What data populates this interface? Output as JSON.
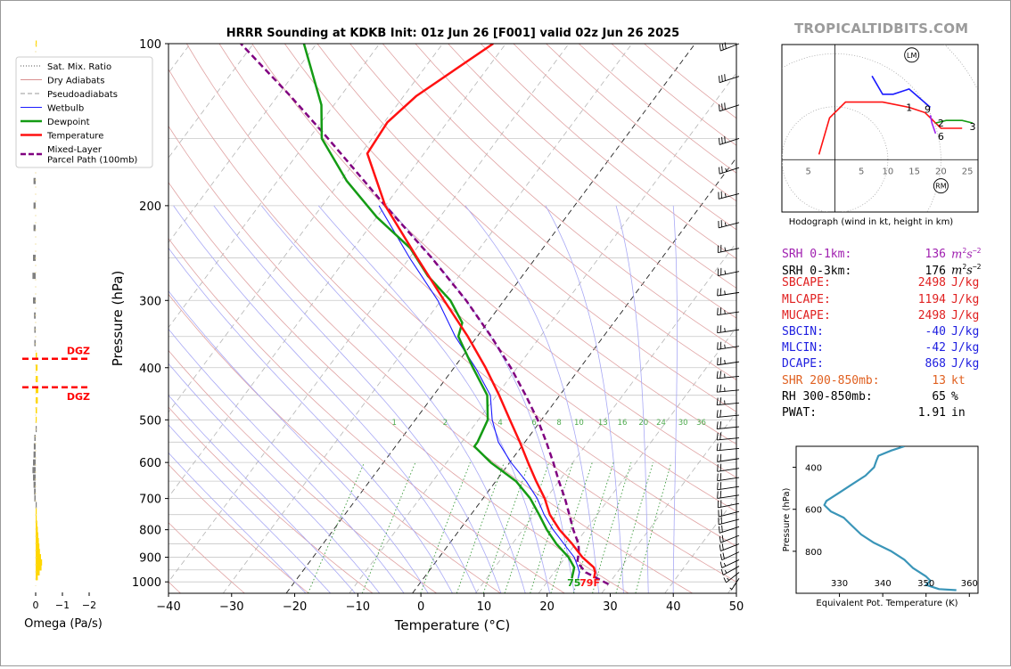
{
  "header": {
    "title": "HRRR Sounding at KDKB Init: 01z Jun 26 [F001] valid 02z Jun 26 2025",
    "brand": "TROPICALTIDBITS.COM"
  },
  "legend": [
    {
      "label": "Sat. Mix. Ratio",
      "color": "#555555",
      "style": "dotted"
    },
    {
      "label": "Dry Adiabats",
      "color": "#d98f8f",
      "style": "solid"
    },
    {
      "label": "Pseudoadiabats",
      "color": "#999999",
      "style": "dashed"
    },
    {
      "label": "Wetbulb",
      "color": "#1a1aff",
      "style": "solid"
    },
    {
      "label": "Dewpoint",
      "color": "#149b14",
      "style": "solid"
    },
    {
      "label": "Temperature",
      "color": "#ff1111",
      "style": "solid"
    },
    {
      "label": "Mixed-Layer\nParcel Path (100mb)",
      "color": "#800080",
      "style": "dashed"
    }
  ],
  "colors": {
    "temperature": "#ff1111",
    "dewpoint": "#149b14",
    "wetbulb": "#1a1aff",
    "parcel": "#800080",
    "dry_adiabat": "#e0a3a3",
    "moist_adiabat": "#b0b0ff",
    "mixing_ratio": "#2e8b2e",
    "dgz": "#ff0000",
    "omega_up": "#ffd700",
    "omega_down": "#808080",
    "theta_e": "#3a95b8"
  },
  "chart_data": [
    {
      "type": "line",
      "name": "skewt",
      "xlabel": "Temperature (°C)",
      "ylabel": "Pressure (hPa)",
      "xlim": [
        -40,
        50
      ],
      "ylim": [
        1050,
        100
      ],
      "y_scale": "log",
      "xticks": [
        -40,
        -30,
        -20,
        -10,
        0,
        10,
        20,
        30,
        40,
        50
      ],
      "yticks": [
        100,
        200,
        300,
        400,
        500,
        600,
        700,
        800,
        900,
        1000
      ],
      "mixing_ratio_labels": [
        "1",
        "2",
        "4",
        "6",
        "8",
        "10",
        "13",
        "16",
        "20",
        "24",
        "30",
        "36"
      ],
      "mixing_ratio_values": [
        1,
        2,
        4,
        6,
        8,
        10,
        13,
        16,
        20,
        24,
        30,
        36
      ],
      "surface_label": "75",
      "surface_label2": "79F",
      "series": [
        {
          "key": "temperature",
          "p": [
            985,
            960,
            940,
            900,
            850,
            800,
            750,
            700,
            650,
            600,
            550,
            500,
            450,
            400,
            350,
            300,
            250,
            200,
            160,
            140,
            125,
            100
          ],
          "t": [
            27.0,
            26.5,
            25.7,
            22.7,
            19.5,
            15.8,
            12.5,
            9.8,
            6.4,
            2.9,
            -0.8,
            -5.0,
            -9.6,
            -15.0,
            -21.5,
            -29.5,
            -38.8,
            -50.0,
            -59.0,
            -59.5,
            -58.0,
            -52.0
          ]
        },
        {
          "key": "dewpoint",
          "p": [
            985,
            960,
            940,
            900,
            850,
            800,
            750,
            700,
            650,
            600,
            560,
            550,
            500,
            450,
            400,
            350,
            330,
            300,
            270,
            240,
            210,
            180,
            150,
            130,
            100
          ],
          "t": [
            23.5,
            23.0,
            22.6,
            20.5,
            17.0,
            13.8,
            10.8,
            7.5,
            3.2,
            -3.0,
            -7.5,
            -7.5,
            -8.5,
            -11.5,
            -17.0,
            -23.0,
            -24.0,
            -28.5,
            -35.0,
            -41.0,
            -50.0,
            -59.0,
            -68.0,
            -72.0,
            -82.0
          ]
        },
        {
          "key": "wetbulb",
          "p": [
            985,
            960,
            940,
            900,
            850,
            800,
            750,
            700,
            650,
            600,
            550,
            500,
            450,
            400,
            350,
            300,
            250,
            200
          ],
          "t": [
            24.5,
            24.0,
            23.2,
            21.4,
            18.2,
            14.8,
            11.6,
            8.6,
            4.8,
            0.2,
            -4.2,
            -7.8,
            -11.0,
            -16.6,
            -23.5,
            -30.5,
            -40.0,
            -51.0
          ]
        },
        {
          "key": "parcel",
          "p": [
            1010,
            960,
            920,
            880,
            850,
            800,
            750,
            700,
            650,
            600,
            550,
            500,
            450,
            400,
            350,
            300,
            250,
            200,
            150,
            125,
            100
          ],
          "t": [
            30.0,
            25.0,
            22.5,
            21.5,
            20.5,
            18.0,
            15.6,
            13.0,
            10.0,
            6.9,
            3.4,
            -0.6,
            -5.4,
            -11.0,
            -17.8,
            -26.0,
            -36.5,
            -50.0,
            -67.0,
            -78.0,
            -92.0
          ]
        }
      ],
      "wind_barbs": [
        {
          "p": 985,
          "dir": 200,
          "kt": 5
        },
        {
          "p": 960,
          "dir": 215,
          "kt": 15
        },
        {
          "p": 935,
          "dir": 225,
          "kt": 15
        },
        {
          "p": 910,
          "dir": 230,
          "kt": 15
        },
        {
          "p": 880,
          "dir": 230,
          "kt": 20
        },
        {
          "p": 850,
          "dir": 235,
          "kt": 20
        },
        {
          "p": 820,
          "dir": 235,
          "kt": 20
        },
        {
          "p": 790,
          "dir": 240,
          "kt": 20
        },
        {
          "p": 765,
          "dir": 245,
          "kt": 20
        },
        {
          "p": 740,
          "dir": 245,
          "kt": 20
        },
        {
          "p": 715,
          "dir": 250,
          "kt": 20
        },
        {
          "p": 690,
          "dir": 255,
          "kt": 20
        },
        {
          "p": 665,
          "dir": 255,
          "kt": 20
        },
        {
          "p": 640,
          "dir": 255,
          "kt": 20
        },
        {
          "p": 615,
          "dir": 255,
          "kt": 20
        },
        {
          "p": 590,
          "dir": 255,
          "kt": 20
        },
        {
          "p": 565,
          "dir": 260,
          "kt": 20
        },
        {
          "p": 540,
          "dir": 260,
          "kt": 20
        },
        {
          "p": 515,
          "dir": 260,
          "kt": 20
        },
        {
          "p": 490,
          "dir": 260,
          "kt": 20
        },
        {
          "p": 465,
          "dir": 260,
          "kt": 25
        },
        {
          "p": 440,
          "dir": 260,
          "kt": 25
        },
        {
          "p": 415,
          "dir": 260,
          "kt": 25
        },
        {
          "p": 390,
          "dir": 255,
          "kt": 25
        },
        {
          "p": 365,
          "dir": 255,
          "kt": 25
        },
        {
          "p": 340,
          "dir": 255,
          "kt": 25
        },
        {
          "p": 315,
          "dir": 255,
          "kt": 25
        },
        {
          "p": 290,
          "dir": 255,
          "kt": 25
        },
        {
          "p": 265,
          "dir": 250,
          "kt": 25
        },
        {
          "p": 240,
          "dir": 250,
          "kt": 25
        },
        {
          "p": 215,
          "dir": 245,
          "kt": 25
        },
        {
          "p": 190,
          "dir": 245,
          "kt": 25
        },
        {
          "p": 170,
          "dir": 240,
          "kt": 25
        },
        {
          "p": 150,
          "dir": 240,
          "kt": 30
        },
        {
          "p": 130,
          "dir": 240,
          "kt": 30
        },
        {
          "p": 115,
          "dir": 240,
          "kt": 30
        },
        {
          "p": 100,
          "dir": 235,
          "kt": 30
        }
      ]
    },
    {
      "type": "bar",
      "name": "omega",
      "xlabel": "Omega (Pa/s)",
      "xlim": [
        0.3,
        -2.5
      ],
      "xticks": [
        0,
        -1,
        -2
      ],
      "xticklabels": [
        "0",
        "−1",
        "−2"
      ],
      "dgz_label": "DGZ",
      "dgz_levels_hpa": [
        385,
        435
      ],
      "p": [
        100,
        110,
        120,
        135,
        150,
        165,
        180,
        200,
        220,
        250,
        270,
        300,
        320,
        340,
        360,
        380,
        400,
        420,
        440,
        460,
        480,
        500,
        520,
        540,
        560,
        580,
        600,
        620,
        640,
        660,
        680,
        700,
        720,
        740,
        760,
        780,
        800,
        820,
        840,
        860,
        880,
        900,
        920,
        940,
        960,
        980
      ],
      "values": [
        -0.02,
        0.0,
        -0.05,
        0.06,
        0.06,
        0.06,
        0.08,
        0.08,
        0.08,
        0.1,
        0.12,
        0.1,
        0.06,
        0.05,
        0.05,
        -0.05,
        -0.07,
        -0.08,
        -0.1,
        -0.08,
        -0.05,
        -0.04,
        0.0,
        0.05,
        0.07,
        0.08,
        0.1,
        0.12,
        0.1,
        0.08,
        0.06,
        0.05,
        0.0,
        -0.02,
        -0.04,
        -0.06,
        -0.08,
        -0.1,
        -0.12,
        -0.14,
        -0.16,
        -0.2,
        -0.24,
        -0.22,
        -0.15,
        -0.08
      ]
    },
    {
      "type": "line",
      "name": "hodograph",
      "caption": "Hodograph (wind in kt, height in km)",
      "xticks": [
        -5,
        5,
        10,
        15,
        20,
        25
      ],
      "xticklabels": [
        "5",
        "5",
        "10",
        "15",
        "20",
        "25"
      ],
      "xlim": [
        -10,
        27
      ],
      "ylim": [
        -10,
        22
      ],
      "storm_labels": [
        {
          "label": "LM",
          "u": 14.5,
          "v": 20
        },
        {
          "label": "RM",
          "u": 20,
          "v": -5
        }
      ],
      "height_labels": [
        {
          "label": "1",
          "u": 14,
          "v": 10
        },
        {
          "label": "9",
          "u": 17.5,
          "v": 9.7
        },
        {
          "label": "2",
          "u": 20,
          "v": 7
        },
        {
          "label": "3",
          "u": 26,
          "v": 6.3
        },
        {
          "label": "6",
          "u": 20,
          "v": 4.5
        }
      ],
      "segments": [
        {
          "color": "#ff1111",
          "points": [
            [
              -3,
              1
            ],
            [
              -1,
              8
            ],
            [
              2,
              11
            ],
            [
              5,
              11
            ],
            [
              9,
              11
            ],
            [
              14,
              10
            ],
            [
              17,
              9
            ],
            [
              19,
              7
            ],
            [
              20,
              6
            ],
            [
              22,
              6
            ],
            [
              24,
              6
            ]
          ]
        },
        {
          "color": "#149b14",
          "points": [
            [
              19,
              7
            ],
            [
              21,
              7.5
            ],
            [
              24,
              7.5
            ],
            [
              26,
              7
            ]
          ]
        },
        {
          "color": "#a020f0",
          "points": [
            [
              18,
              8.5
            ],
            [
              18.3,
              7
            ],
            [
              19,
              5
            ]
          ]
        },
        {
          "color": "#1a1aff",
          "points": [
            [
              7,
              16
            ],
            [
              9,
              12.5
            ],
            [
              11,
              12.5
            ],
            [
              14,
              13.5
            ],
            [
              18,
              10
            ]
          ]
        }
      ]
    },
    {
      "type": "line",
      "name": "theta_e",
      "ylabel": "Pressure (hPa)",
      "xlabel": "Equivalent Pot. Temperature (K)",
      "xlim": [
        320,
        362
      ],
      "ylim": [
        1000,
        300
      ],
      "xticks": [
        330,
        340,
        350,
        360
      ],
      "yticks": [
        400,
        600,
        800
      ],
      "p": [
        300,
        320,
        345,
        370,
        400,
        440,
        480,
        520,
        560,
        580,
        610,
        640,
        680,
        720,
        760,
        800,
        840,
        880,
        920,
        940,
        960,
        980,
        985
      ],
      "theta_e": [
        345,
        342,
        339,
        338.5,
        338,
        336,
        333,
        330,
        327,
        326.5,
        328,
        331,
        333,
        335,
        338,
        342,
        345,
        347,
        350,
        351,
        350,
        353,
        357
      ]
    }
  ],
  "params": [
    {
      "label": "SRH 0-1km:",
      "value": "136",
      "unit": "m2s-2",
      "color": "#a020b0"
    },
    {
      "label": "SRH 0-3km:",
      "value": "176",
      "unit": "m2s-2",
      "color": "#000000"
    },
    {
      "label": "SBCAPE:",
      "value": "2498",
      "unit": "J/kg",
      "color": "#e02020"
    },
    {
      "label": "MLCAPE:",
      "value": "1194",
      "unit": "J/kg",
      "color": "#e02020"
    },
    {
      "label": "MUCAPE:",
      "value": "2498",
      "unit": "J/kg",
      "color": "#e02020"
    },
    {
      "label": "SBCIN:",
      "value": "-40",
      "unit": "J/kg",
      "color": "#2020e0"
    },
    {
      "label": "MLCIN:",
      "value": "-42",
      "unit": "J/kg",
      "color": "#2020e0"
    },
    {
      "label": "DCAPE:",
      "value": "868",
      "unit": "J/kg",
      "color": "#2020e0"
    },
    {
      "label": "SHR 200-850mb:",
      "value": "13",
      "unit": "kt",
      "color": "#e06020"
    },
    {
      "label": "RH 300-850mb:",
      "value": "65",
      "unit": "%",
      "color": "#000000"
    },
    {
      "label": "PWAT:",
      "value": "1.91",
      "unit": "in",
      "color": "#000000"
    }
  ]
}
